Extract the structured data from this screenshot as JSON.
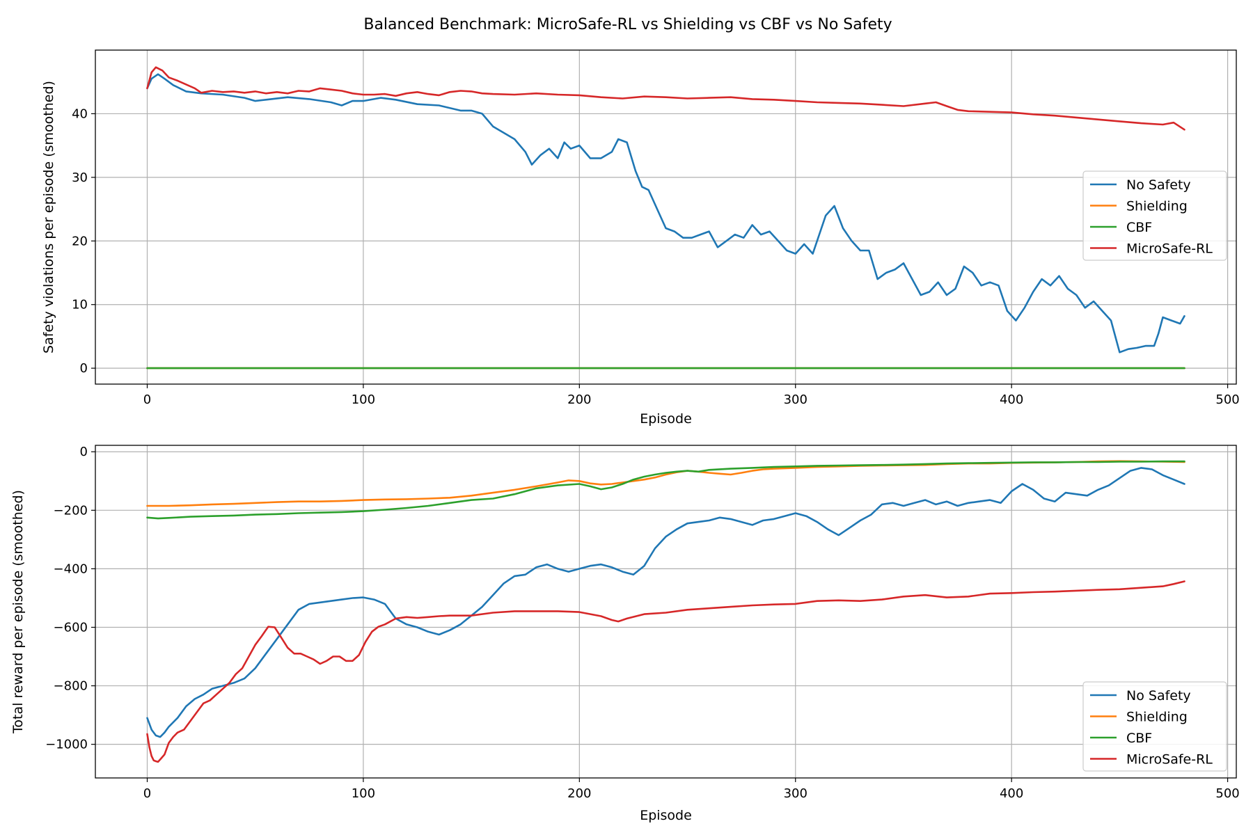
{
  "figure_title": "Balanced Benchmark: MicroSafe-RL vs Shielding vs CBF vs No Safety",
  "colors": {
    "No Safety": "#1f77b4",
    "Shielding": "#ff7f0e",
    "CBF": "#2ca02c",
    "MicroSafe-RL": "#d62728"
  },
  "chart_data": [
    {
      "id": "violations",
      "type": "line",
      "title": "",
      "xlabel": "Episode",
      "ylabel": "Safety violations per episode (smoothed)",
      "xlim": [
        -24,
        504
      ],
      "ylim": [
        -2.5,
        50
      ],
      "xticks": [
        0,
        100,
        200,
        300,
        400,
        500
      ],
      "yticks": [
        0,
        10,
        20,
        30,
        40
      ],
      "xtick_labels": [
        "0",
        "100",
        "200",
        "300",
        "400",
        "500"
      ],
      "ytick_labels": [
        "0",
        "10",
        "20",
        "30",
        "40"
      ],
      "grid": true,
      "legend_location": "center-right",
      "legend": [
        "No Safety",
        "Shielding",
        "CBF",
        "MicroSafe-RL"
      ],
      "series": [
        {
          "name": "No Safety",
          "x": [
            0,
            2,
            5,
            8,
            12,
            18,
            25,
            35,
            45,
            50,
            55,
            65,
            75,
            85,
            90,
            95,
            100,
            108,
            115,
            125,
            135,
            145,
            150,
            155,
            160,
            165,
            170,
            175,
            178,
            182,
            186,
            190,
            193,
            196,
            200,
            205,
            210,
            215,
            218,
            222,
            226,
            229,
            232,
            236,
            240,
            244,
            248,
            252,
            256,
            260,
            264,
            268,
            272,
            276,
            280,
            284,
            288,
            292,
            296,
            300,
            304,
            308,
            312,
            314,
            318,
            322,
            326,
            330,
            334,
            338,
            342,
            346,
            350,
            354,
            358,
            362,
            366,
            370,
            374,
            378,
            382,
            386,
            390,
            394,
            398,
            402,
            406,
            410,
            414,
            418,
            422,
            426,
            430,
            434,
            438,
            442,
            446,
            450,
            454,
            458,
            462,
            466,
            468,
            470,
            474,
            478,
            480
          ],
          "y": [
            44,
            45.5,
            46.2,
            45.5,
            44.5,
            43.5,
            43.2,
            43,
            42.5,
            42,
            42.2,
            42.6,
            42.3,
            41.8,
            41.3,
            42,
            42,
            42.5,
            42.2,
            41.5,
            41.3,
            40.5,
            40.5,
            40,
            38,
            37,
            36,
            34,
            32,
            33.5,
            34.5,
            33,
            35.5,
            34.5,
            35,
            33,
            33,
            34,
            36,
            35.5,
            31,
            28.5,
            28,
            25,
            22,
            21.5,
            20.5,
            20.5,
            21,
            21.5,
            19,
            20,
            21,
            20.5,
            22.5,
            21,
            21.5,
            20,
            18.5,
            18,
            19.5,
            18,
            22,
            24,
            25.5,
            22,
            20,
            18.5,
            18.5,
            14,
            15,
            15.5,
            16.5,
            14,
            11.5,
            12,
            13.5,
            11.5,
            12.5,
            16,
            15,
            13,
            13.5,
            13,
            9,
            7.5,
            9.5,
            12,
            14,
            13,
            14.5,
            12.5,
            11.5,
            9.5,
            10.5,
            9,
            7.5,
            2.5,
            3,
            3.2,
            3.5,
            3.5,
            5.5,
            8,
            7.5,
            7,
            8.2
          ]
        },
        {
          "name": "Shielding",
          "x": [
            0,
            480
          ],
          "y": [
            0,
            0
          ]
        },
        {
          "name": "CBF",
          "x": [
            0,
            480
          ],
          "y": [
            0,
            0
          ]
        },
        {
          "name": "MicroSafe-RL",
          "x": [
            0,
            2,
            4,
            7,
            10,
            14,
            18,
            22,
            25,
            30,
            35,
            40,
            45,
            50,
            55,
            60,
            65,
            70,
            75,
            80,
            85,
            90,
            95,
            100,
            105,
            110,
            115,
            120,
            125,
            130,
            135,
            140,
            145,
            150,
            155,
            160,
            170,
            180,
            190,
            200,
            210,
            220,
            230,
            240,
            250,
            260,
            270,
            280,
            290,
            300,
            310,
            320,
            330,
            340,
            350,
            360,
            365,
            370,
            375,
            380,
            390,
            400,
            410,
            420,
            430,
            440,
            450,
            460,
            470,
            475,
            480
          ],
          "y": [
            44,
            46.5,
            47.3,
            46.8,
            45.7,
            45.2,
            44.6,
            44,
            43.3,
            43.6,
            43.4,
            43.5,
            43.3,
            43.5,
            43.2,
            43.4,
            43.2,
            43.6,
            43.5,
            44,
            43.8,
            43.6,
            43.2,
            43,
            43,
            43.1,
            42.8,
            43.2,
            43.4,
            43.1,
            42.9,
            43.4,
            43.6,
            43.5,
            43.2,
            43.1,
            43,
            43.2,
            43,
            42.9,
            42.6,
            42.4,
            42.7,
            42.6,
            42.4,
            42.5,
            42.6,
            42.3,
            42.2,
            42,
            41.8,
            41.7,
            41.6,
            41.4,
            41.2,
            41.6,
            41.8,
            41.2,
            40.6,
            40.4,
            40.3,
            40.2,
            39.9,
            39.7,
            39.4,
            39.1,
            38.8,
            38.5,
            38.3,
            38.6,
            37.5
          ]
        }
      ]
    },
    {
      "id": "reward",
      "type": "line",
      "title": "",
      "xlabel": "Episode",
      "ylabel": "Total reward per episode (smoothed)",
      "xlim": [
        -24,
        504
      ],
      "ylim": [
        -1115,
        22
      ],
      "xticks": [
        0,
        100,
        200,
        300,
        400,
        500
      ],
      "yticks": [
        0,
        -200,
        -400,
        -600,
        -800,
        -1000
      ],
      "xtick_labels": [
        "0",
        "100",
        "200",
        "300",
        "400",
        "500"
      ],
      "ytick_labels": [
        "0",
        "−200",
        "−400",
        "−600",
        "−800",
        "−1000"
      ],
      "grid": true,
      "legend_location": "lower-right",
      "legend": [
        "No Safety",
        "Shielding",
        "CBF",
        "MicroSafe-RL"
      ],
      "series": [
        {
          "name": "No Safety",
          "x": [
            0,
            2,
            4,
            6,
            8,
            10,
            14,
            18,
            22,
            26,
            30,
            35,
            40,
            45,
            50,
            55,
            60,
            65,
            70,
            75,
            80,
            85,
            90,
            95,
            100,
            105,
            110,
            115,
            120,
            125,
            130,
            135,
            140,
            145,
            150,
            155,
            160,
            165,
            170,
            175,
            180,
            185,
            190,
            195,
            200,
            205,
            210,
            215,
            220,
            225,
            230,
            235,
            240,
            245,
            250,
            255,
            260,
            265,
            270,
            275,
            280,
            285,
            290,
            295,
            300,
            305,
            310,
            315,
            320,
            325,
            330,
            335,
            340,
            345,
            350,
            355,
            360,
            365,
            370,
            375,
            380,
            385,
            390,
            395,
            400,
            405,
            410,
            415,
            420,
            425,
            430,
            435,
            440,
            445,
            450,
            455,
            460,
            465,
            470,
            475,
            480
          ],
          "y": [
            -910,
            -950,
            -970,
            -975,
            -960,
            -940,
            -910,
            -870,
            -845,
            -830,
            -810,
            -800,
            -790,
            -775,
            -740,
            -690,
            -640,
            -590,
            -540,
            -520,
            -515,
            -510,
            -505,
            -500,
            -498,
            -505,
            -520,
            -570,
            -590,
            -600,
            -615,
            -625,
            -610,
            -590,
            -560,
            -530,
            -490,
            -450,
            -425,
            -420,
            -395,
            -385,
            -400,
            -410,
            -400,
            -390,
            -385,
            -395,
            -410,
            -420,
            -390,
            -330,
            -290,
            -265,
            -245,
            -240,
            -235,
            -225,
            -230,
            -240,
            -250,
            -235,
            -230,
            -220,
            -210,
            -220,
            -240,
            -265,
            -285,
            -260,
            -235,
            -215,
            -180,
            -175,
            -185,
            -175,
            -165,
            -180,
            -170,
            -185,
            -175,
            -170,
            -165,
            -175,
            -135,
            -110,
            -130,
            -160,
            -170,
            -140,
            -145,
            -150,
            -130,
            -115,
            -90,
            -65,
            -55,
            -60,
            -80,
            -95,
            -110
          ]
        },
        {
          "name": "Shielding",
          "x": [
            0,
            10,
            20,
            30,
            40,
            50,
            60,
            70,
            80,
            90,
            100,
            110,
            120,
            130,
            140,
            150,
            160,
            170,
            180,
            190,
            195,
            200,
            205,
            210,
            215,
            220,
            225,
            230,
            235,
            240,
            245,
            250,
            255,
            260,
            265,
            270,
            275,
            280,
            285,
            290,
            300,
            310,
            320,
            330,
            340,
            350,
            360,
            370,
            380,
            390,
            400,
            410,
            420,
            430,
            440,
            450,
            460,
            470,
            480
          ],
          "y": [
            -185,
            -185,
            -183,
            -180,
            -178,
            -175,
            -172,
            -170,
            -170,
            -168,
            -165,
            -163,
            -162,
            -160,
            -157,
            -150,
            -140,
            -130,
            -118,
            -105,
            -98,
            -100,
            -108,
            -112,
            -110,
            -105,
            -100,
            -95,
            -88,
            -78,
            -70,
            -65,
            -68,
            -72,
            -75,
            -78,
            -72,
            -65,
            -60,
            -58,
            -55,
            -52,
            -50,
            -48,
            -47,
            -46,
            -45,
            -42,
            -40,
            -40,
            -38,
            -37,
            -36,
            -35,
            -33,
            -32,
            -33,
            -34,
            -35
          ]
        },
        {
          "name": "CBF",
          "x": [
            0,
            5,
            10,
            20,
            30,
            40,
            50,
            60,
            70,
            80,
            90,
            100,
            110,
            120,
            130,
            140,
            150,
            160,
            170,
            180,
            190,
            200,
            205,
            210,
            215,
            220,
            225,
            230,
            235,
            240,
            245,
            250,
            255,
            260,
            270,
            280,
            290,
            300,
            310,
            320,
            330,
            340,
            350,
            360,
            370,
            380,
            390,
            400,
            410,
            420,
            430,
            440,
            450,
            460,
            470,
            480
          ],
          "y": [
            -225,
            -228,
            -226,
            -222,
            -220,
            -218,
            -215,
            -213,
            -210,
            -208,
            -206,
            -203,
            -198,
            -192,
            -185,
            -175,
            -165,
            -160,
            -145,
            -125,
            -115,
            -110,
            -118,
            -128,
            -122,
            -110,
            -95,
            -85,
            -78,
            -72,
            -68,
            -65,
            -68,
            -62,
            -58,
            -55,
            -52,
            -50,
            -48,
            -47,
            -46,
            -45,
            -44,
            -42,
            -40,
            -39,
            -38,
            -37,
            -36,
            -36,
            -35,
            -35,
            -34,
            -34,
            -33,
            -33
          ]
        },
        {
          "name": "MicroSafe-RL",
          "x": [
            0,
            1,
            2,
            3,
            4,
            5,
            6,
            8,
            10,
            12,
            14,
            17,
            20,
            23,
            26,
            29,
            32,
            35,
            38,
            41,
            44,
            47,
            50,
            53,
            56,
            59,
            62,
            65,
            68,
            71,
            74,
            77,
            80,
            83,
            86,
            89,
            92,
            95,
            98,
            101,
            104,
            107,
            110,
            115,
            120,
            125,
            130,
            135,
            140,
            150,
            160,
            170,
            180,
            190,
            200,
            210,
            215,
            218,
            222,
            230,
            240,
            250,
            260,
            270,
            280,
            290,
            300,
            310,
            320,
            330,
            340,
            350,
            360,
            370,
            380,
            390,
            400,
            410,
            420,
            430,
            440,
            450,
            460,
            470,
            475,
            480
          ],
          "y": [
            -965,
            -1010,
            -1040,
            -1055,
            -1058,
            -1060,
            -1052,
            -1035,
            -995,
            -975,
            -960,
            -950,
            -920,
            -890,
            -860,
            -850,
            -830,
            -810,
            -790,
            -760,
            -740,
            -700,
            -660,
            -630,
            -598,
            -600,
            -635,
            -670,
            -690,
            -690,
            -700,
            -710,
            -725,
            -715,
            -700,
            -700,
            -715,
            -715,
            -695,
            -650,
            -615,
            -598,
            -590,
            -570,
            -565,
            -568,
            -565,
            -562,
            -560,
            -560,
            -550,
            -545,
            -545,
            -545,
            -548,
            -562,
            -575,
            -580,
            -570,
            -555,
            -550,
            -540,
            -535,
            -530,
            -525,
            -522,
            -520,
            -510,
            -508,
            -510,
            -505,
            -495,
            -490,
            -498,
            -495,
            -485,
            -483,
            -480,
            -478,
            -475,
            -472,
            -470,
            -465,
            -460,
            -452,
            -443
          ]
        }
      ]
    }
  ]
}
